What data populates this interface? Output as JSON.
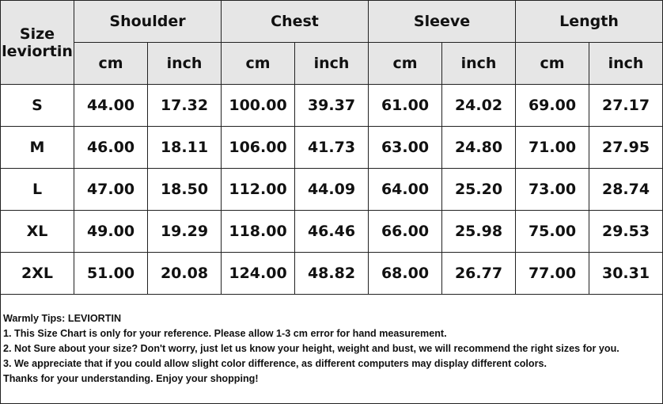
{
  "table": {
    "size_label": [
      "Size",
      "leviortin"
    ],
    "groups": [
      "Shoulder",
      "Chest",
      "Sleeve",
      "Length"
    ],
    "units": [
      "cm",
      "inch",
      "cm",
      "inch",
      "cm",
      "inch",
      "cm",
      "inch"
    ],
    "rows": [
      [
        "S",
        "44.00",
        "17.32",
        "100.00",
        "39.37",
        "61.00",
        "24.02",
        "69.00",
        "27.17"
      ],
      [
        "M",
        "46.00",
        "18.11",
        "106.00",
        "41.73",
        "63.00",
        "24.80",
        "71.00",
        "27.95"
      ],
      [
        "L",
        "47.00",
        "18.50",
        "112.00",
        "44.09",
        "64.00",
        "25.20",
        "73.00",
        "28.74"
      ],
      [
        "XL",
        "49.00",
        "19.29",
        "118.00",
        "46.46",
        "66.00",
        "25.98",
        "75.00",
        "29.53"
      ],
      [
        "2XL",
        "51.00",
        "20.08",
        "124.00",
        "48.82",
        "68.00",
        "26.77",
        "77.00",
        "30.31"
      ]
    ]
  },
  "notes": [
    "Warmly Tips: LEVIORTIN",
    "1. This Size Chart is only for your reference. Please allow 1-3 cm error for hand measurement.",
    "2. Not Sure about your size? Don't worry, just let us know your height, weight and bust, we will recommend the right sizes for you.",
    "3. We appreciate that if you could allow slight color difference, as different computers may display different colors.",
    "Thanks for your understanding. Enjoy your shopping!"
  ]
}
